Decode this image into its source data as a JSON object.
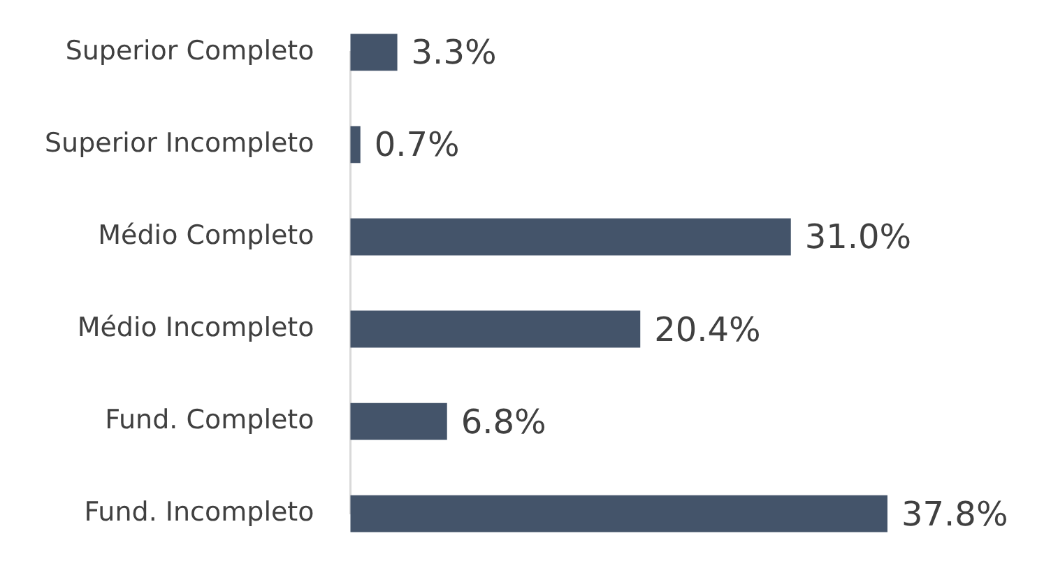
{
  "chart_data": {
    "type": "bar",
    "orientation": "horizontal",
    "categories": [
      "Superior Completo",
      "Superior Incompleto",
      "Médio Completo",
      "Médio Incompleto",
      "Fund. Completo",
      "Fund. Incompleto"
    ],
    "values": [
      3.3,
      0.7,
      31.0,
      20.4,
      6.8,
      37.8
    ],
    "value_labels": [
      "3.3%",
      "0.7%",
      "31.0%",
      "20.4%",
      "6.8%",
      "37.8%"
    ],
    "color": "#44546a",
    "legend": false
  }
}
